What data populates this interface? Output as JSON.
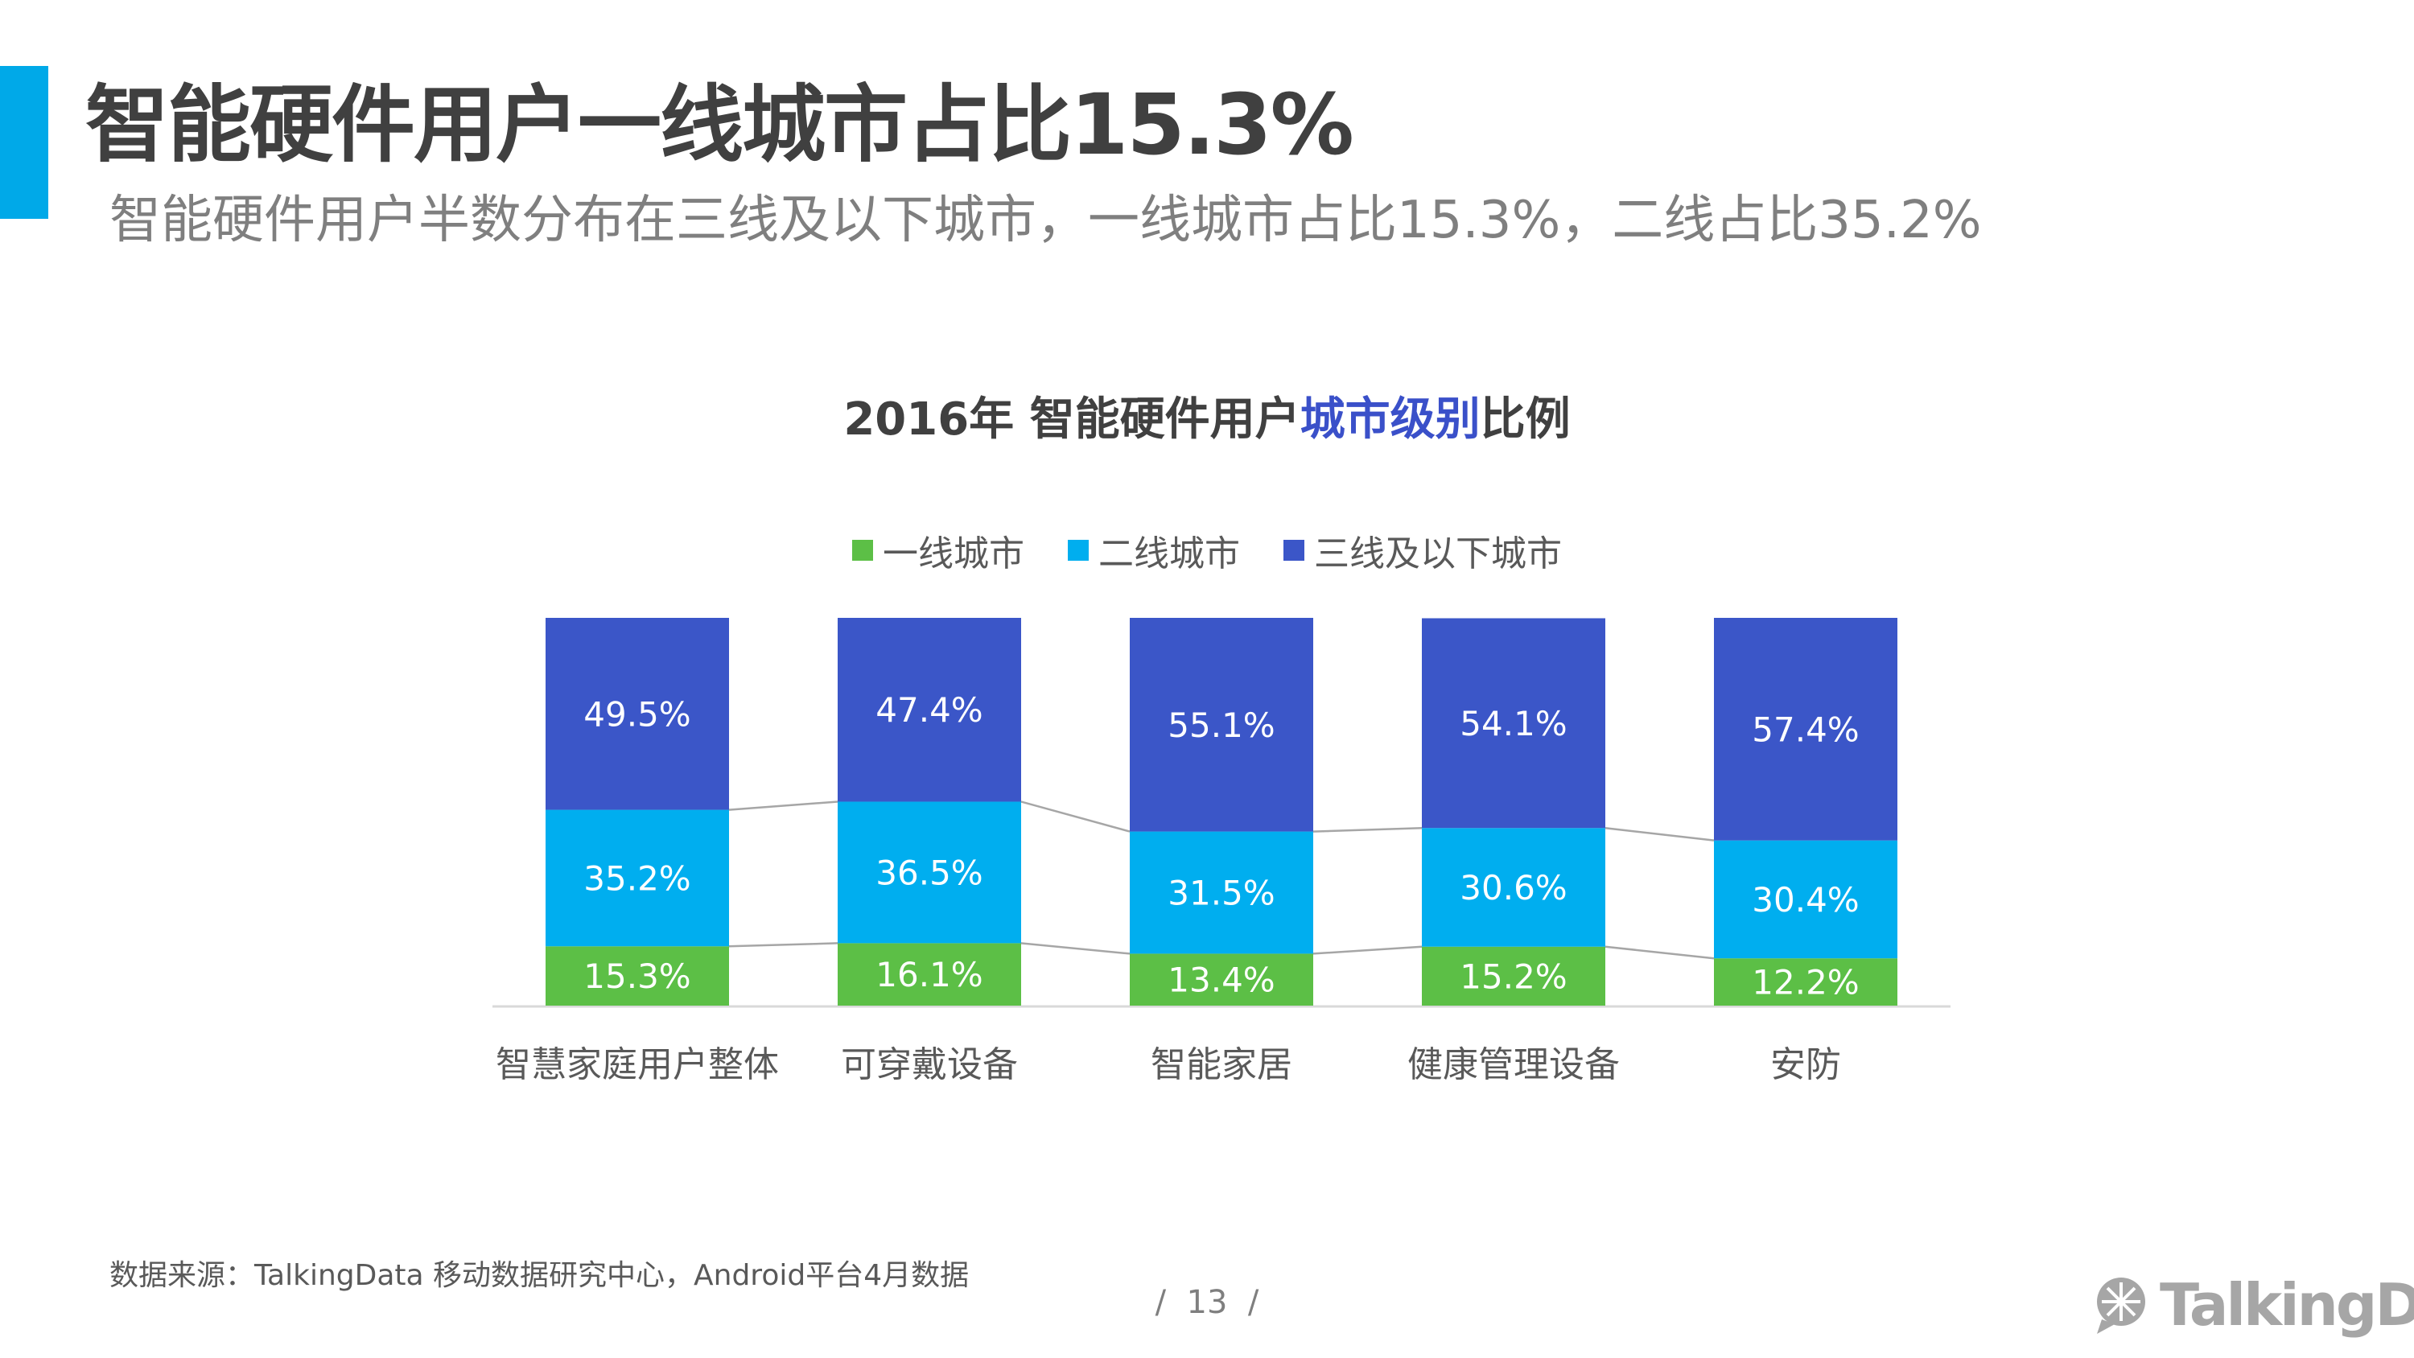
{
  "header": {
    "title": "智能硬件用户一线城市占比15.3%",
    "subtitle": "智能硬件用户半数分布在三线及以下城市，一线城市占比15.3%，二线占比35.2%"
  },
  "chart_title": {
    "prefix": "2016年 智能硬件用户",
    "highlight": "城市级别",
    "suffix": "比例"
  },
  "footer": {
    "source": "数据来源：TalkingData 移动数据研究中心，Android平台4月数据",
    "page": "/  13  /",
    "logo_text": "TalkingData"
  },
  "colors": {
    "tier1": "#5cbf46",
    "tier2": "#00aeef",
    "tier3": "#3b56c8",
    "accent": "#00a9e8",
    "highlight": "#3a50c9"
  },
  "chart_data": {
    "type": "bar",
    "stacked": true,
    "categories": [
      "智慧家庭用户整体",
      "可穿戴设备",
      "智能家居",
      "健康管理设备",
      "安防"
    ],
    "series": [
      {
        "name": "一线城市",
        "values": [
          15.3,
          16.1,
          13.4,
          15.2,
          12.2
        ],
        "labels": [
          "15.3%",
          "16.1%",
          "13.4%",
          "15.2%",
          "12.2%"
        ]
      },
      {
        "name": "二线城市",
        "values": [
          35.2,
          36.5,
          31.5,
          30.6,
          30.4
        ],
        "labels": [
          "35.2%",
          "36.5%",
          "31.5%",
          "30.6%",
          "30.4%"
        ]
      },
      {
        "name": "三线及以下城市",
        "values": [
          49.5,
          47.4,
          55.1,
          54.1,
          57.4
        ],
        "labels": [
          "49.5%",
          "47.4%",
          "55.1%",
          "54.1%",
          "57.4%"
        ]
      }
    ],
    "ylim": [
      0,
      100
    ],
    "legend_position": "top-center",
    "grid": false
  }
}
